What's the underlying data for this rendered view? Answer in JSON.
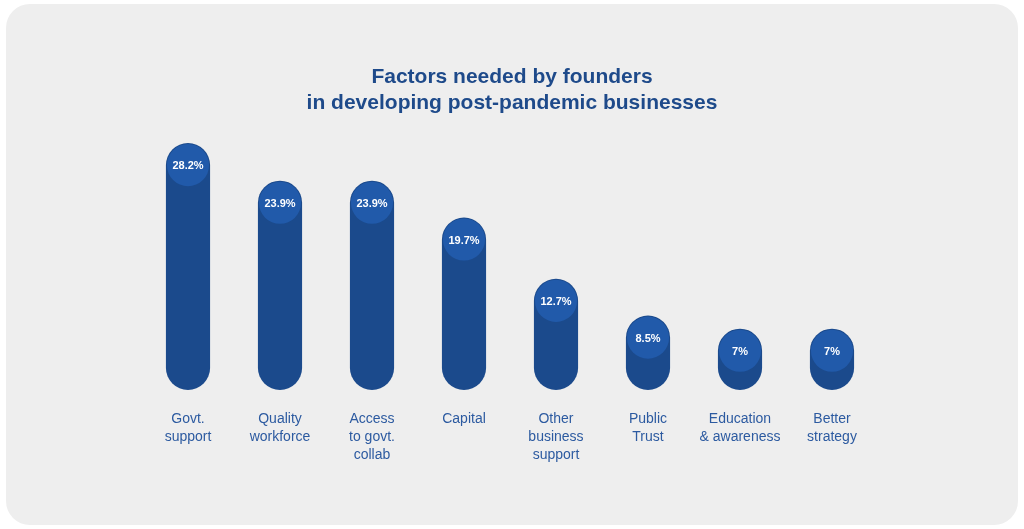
{
  "chart_data": {
    "type": "bar",
    "title": "Factors needed by founders\nin developing post-pandemic businesses",
    "categories": [
      "Govt.\nsupport",
      "Quality\nworkforce",
      "Access\nto govt.\ncollab",
      "Capital",
      "Other\nbusiness\nsupport",
      "Public\nTrust",
      "Education\n& awareness",
      "Better\nstrategy"
    ],
    "values": [
      28.2,
      23.9,
      23.9,
      19.7,
      12.7,
      8.5,
      7,
      7
    ],
    "value_labels": [
      "28.2%",
      "23.9%",
      "23.9%",
      "19.7%",
      "12.7%",
      "8.5%",
      "7%",
      "7%"
    ],
    "color": "#1b4a8c"
  }
}
